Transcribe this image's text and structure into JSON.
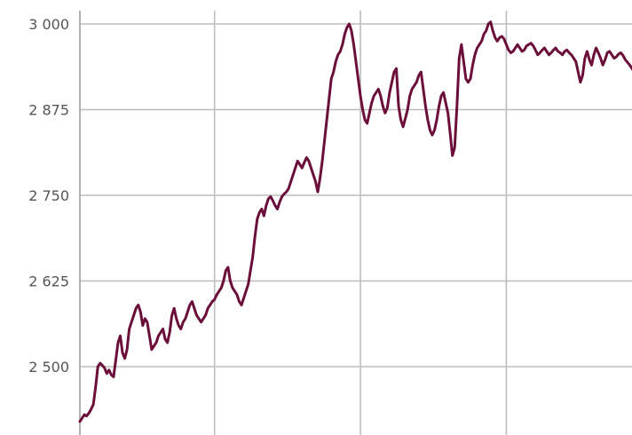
{
  "chart_data": {
    "type": "line",
    "title": "",
    "xlabel": "",
    "ylabel": "",
    "ylim": [
      2420,
      3015
    ],
    "xlim": [
      0,
      246
    ],
    "x_grid_at": [
      60,
      125,
      190
    ],
    "yticks": [
      {
        "value": 2500,
        "label": "2 500"
      },
      {
        "value": 2625,
        "label": "2 625"
      },
      {
        "value": 2750,
        "label": "2 750"
      },
      {
        "value": 2875,
        "label": "2 875"
      },
      {
        "value": 3000,
        "label": "3 000"
      }
    ],
    "grid": true,
    "legend": "none",
    "series": [
      {
        "name": "",
        "color": "#6b0f3a",
        "values": [
          2420,
          2425,
          2430,
          2428,
          2432,
          2438,
          2445,
          2470,
          2500,
          2505,
          2502,
          2498,
          2490,
          2495,
          2488,
          2485,
          2510,
          2535,
          2545,
          2520,
          2512,
          2525,
          2555,
          2565,
          2575,
          2585,
          2590,
          2580,
          2560,
          2570,
          2565,
          2545,
          2525,
          2530,
          2535,
          2545,
          2550,
          2555,
          2540,
          2535,
          2550,
          2575,
          2585,
          2570,
          2560,
          2555,
          2565,
          2570,
          2580,
          2590,
          2595,
          2585,
          2575,
          2570,
          2565,
          2570,
          2575,
          2585,
          2590,
          2595,
          2598,
          2605,
          2610,
          2615,
          2625,
          2640,
          2645,
          2625,
          2615,
          2610,
          2605,
          2595,
          2590,
          2600,
          2610,
          2620,
          2640,
          2660,
          2690,
          2715,
          2725,
          2730,
          2720,
          2735,
          2745,
          2748,
          2742,
          2735,
          2730,
          2740,
          2748,
          2752,
          2755,
          2760,
          2770,
          2780,
          2790,
          2800,
          2795,
          2790,
          2798,
          2805,
          2800,
          2790,
          2780,
          2770,
          2755,
          2775,
          2800,
          2830,
          2860,
          2890,
          2920,
          2930,
          2945,
          2955,
          2960,
          2970,
          2985,
          2995,
          3000,
          2990,
          2970,
          2945,
          2920,
          2895,
          2875,
          2860,
          2855,
          2870,
          2885,
          2895,
          2900,
          2905,
          2895,
          2880,
          2870,
          2878,
          2900,
          2915,
          2930,
          2935,
          2880,
          2860,
          2850,
          2862,
          2875,
          2895,
          2905,
          2910,
          2915,
          2925,
          2930,
          2905,
          2880,
          2860,
          2845,
          2838,
          2845,
          2860,
          2880,
          2895,
          2900,
          2885,
          2870,
          2840,
          2808,
          2820,
          2880,
          2950,
          2970,
          2945,
          2920,
          2915,
          2920,
          2940,
          2955,
          2965,
          2970,
          2975,
          2985,
          2990,
          3000,
          3003,
          2990,
          2980,
          2975,
          2980,
          2982,
          2978,
          2970,
          2962,
          2958,
          2960,
          2965,
          2970,
          2965,
          2960,
          2962,
          2968,
          2970,
          2972,
          2968,
          2962,
          2955,
          2958,
          2962,
          2965,
          2960,
          2955,
          2958,
          2962,
          2965,
          2960,
          2958,
          2955,
          2960,
          2962,
          2958,
          2955,
          2950,
          2945,
          2930,
          2915,
          2925,
          2950,
          2960,
          2948,
          2940,
          2955,
          2965,
          2958,
          2950,
          2940,
          2948,
          2958,
          2960,
          2955,
          2950,
          2952,
          2956,
          2958,
          2954,
          2948,
          2944,
          2940,
          2935,
          2930,
          2935,
          2915,
          2905,
          2900
        ]
      }
    ]
  }
}
